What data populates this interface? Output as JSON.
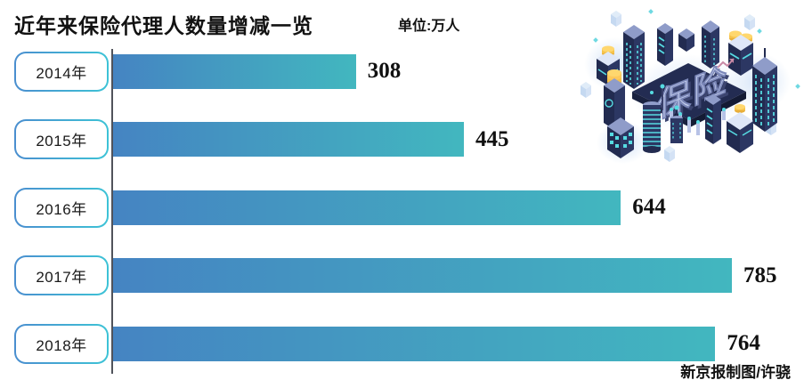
{
  "header": {
    "title": "近年来保险代理人数量增减一览",
    "unit_label": "单位:万人"
  },
  "chart_data": {
    "type": "bar",
    "orientation": "horizontal",
    "title": "近年来保险代理人数量增减一览",
    "unit": "万人",
    "categories": [
      "2014年",
      "2015年",
      "2016年",
      "2017年",
      "2018年"
    ],
    "values": [
      308,
      445,
      644,
      785,
      764
    ],
    "xlabel": "",
    "ylabel": "",
    "xlim": [
      0,
      830
    ],
    "grid": false,
    "legend": false,
    "value_labels": [
      "308",
      "445",
      "644",
      "785",
      "764"
    ]
  },
  "footer": {
    "credit": "新京报制图/许骁"
  },
  "illustration": {
    "name": "isometric-city-illustration",
    "label": "保险"
  },
  "colors": {
    "bar_gradient_start": "#4584c2",
    "bar_gradient_end": "#42b7bf",
    "pill_border_start": "#4a8ecf",
    "pill_border_end": "#3dc3d6",
    "axis_line": "#50535b",
    "city_navy": "#2c3763",
    "city_cyan": "#56dbe2",
    "coin_yellow": "#f6c24a",
    "text": "#121212"
  }
}
